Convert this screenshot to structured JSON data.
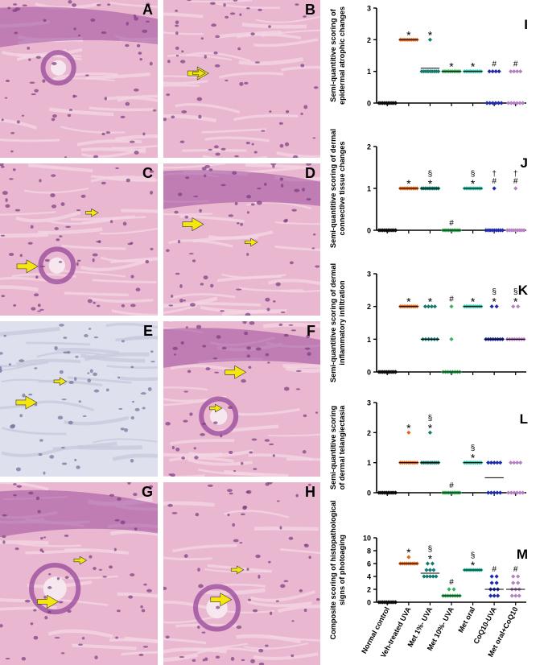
{
  "micrographs": [
    {
      "label": "A"
    },
    {
      "label": "B"
    },
    {
      "label": "C"
    },
    {
      "label": "D"
    },
    {
      "label": "E"
    },
    {
      "label": "F"
    },
    {
      "label": "G"
    },
    {
      "label": "H"
    }
  ],
  "colors": {
    "arrow": "#f5e60f",
    "he_pink": "#e9b7cf",
    "he_purple": "#9c4f9e",
    "series": [
      "#111111",
      "#e2671b",
      "#137a6d",
      "#35b15a",
      "#2fc0a5",
      "#1e2aa8",
      "#b57fc4"
    ]
  },
  "chart_data": [
    {
      "type": "scatter",
      "panel_label": "I",
      "ylabel": [
        "Semi-quantitive scoring of",
        "epidermal atrophic changes"
      ],
      "ylim": [
        0,
        3
      ],
      "yticks": [
        "0",
        "1",
        "2",
        "3"
      ],
      "categories": [
        "Normal control",
        "Veh-treated UVA",
        "Met 1%- UVA",
        "Met 10%- UVA",
        "Met oral",
        "CoQ10-UVA",
        "Met oral+CoQ10"
      ],
      "points": [
        [
          0,
          0,
          0,
          0,
          0,
          0,
          0,
          0,
          0,
          0
        ],
        [
          2,
          2,
          2,
          2,
          2,
          2,
          2,
          2,
          2,
          2
        ],
        [
          2,
          1,
          1,
          1,
          1,
          1,
          1,
          1,
          1,
          1
        ],
        [
          1,
          1,
          1,
          1,
          1,
          1,
          1,
          1,
          1,
          1
        ],
        [
          1,
          1,
          1,
          1,
          1,
          1,
          1,
          1,
          1,
          1
        ],
        [
          1,
          1,
          1,
          1,
          0,
          0,
          0,
          0,
          0,
          0
        ],
        [
          1,
          1,
          1,
          1,
          0,
          0,
          0,
          0,
          0,
          0
        ]
      ],
      "means": [
        0,
        2,
        1.1,
        1,
        1,
        null,
        null
      ],
      "annotations": [
        "",
        "*",
        "*",
        "*",
        "*",
        "#",
        "#"
      ]
    },
    {
      "type": "scatter",
      "panel_label": "J",
      "ylabel": [
        "Semi-quantitive scoring of dermal",
        "connective tissue changes"
      ],
      "ylim": [
        0,
        2
      ],
      "yticks": [
        "0",
        "1",
        "2"
      ],
      "categories": [
        "Normal control",
        "Veh-treated UVA",
        "Met 1%- UVA",
        "Met 10%- UVA",
        "Met oral",
        "CoQ10-UVA",
        "Met oral+CoQ10"
      ],
      "points": [
        [
          0,
          0,
          0,
          0,
          0,
          0,
          0,
          0,
          0,
          0
        ],
        [
          1,
          1,
          1,
          1,
          1,
          1,
          1,
          1,
          1,
          1
        ],
        [
          1,
          1,
          1,
          1,
          1,
          1,
          1,
          1,
          1,
          1
        ],
        [
          0,
          0,
          0,
          0,
          0,
          0,
          0,
          0,
          0,
          0
        ],
        [
          1,
          1,
          1,
          1,
          1,
          1,
          1,
          1,
          1,
          1
        ],
        [
          1,
          0,
          0,
          0,
          0,
          0,
          0,
          0,
          0,
          0
        ],
        [
          1,
          0,
          0,
          0,
          0,
          0,
          0,
          0,
          0,
          0
        ]
      ],
      "means": [
        0,
        1,
        1,
        0,
        1,
        null,
        null
      ],
      "annotations": [
        "",
        "*",
        "§\n*",
        "#",
        "§\n*",
        "†\n#",
        "†\n#"
      ]
    },
    {
      "type": "scatter",
      "panel_label": "K",
      "ylabel": [
        "Semi-quantitive scoring of dermal",
        "inflammatory infiltration"
      ],
      "ylim": [
        0,
        3
      ],
      "yticks": [
        "0",
        "1",
        "2",
        "3"
      ],
      "categories": [
        "Normal control",
        "Veh-treated UVA",
        "Met 1%- UVA",
        "Met 10%- UVA",
        "Met oral",
        "CoQ10-UVA",
        "Met oral+CoQ10"
      ],
      "points": [
        [
          0,
          0,
          0,
          0,
          0,
          0,
          0,
          0,
          0,
          0
        ],
        [
          2,
          2,
          2,
          2,
          2,
          2,
          2,
          2,
          2,
          2
        ],
        [
          2,
          2,
          2,
          2,
          1,
          1,
          1,
          1,
          1,
          1
        ],
        [
          2,
          1,
          0,
          0,
          0,
          0,
          0,
          0,
          0,
          0
        ],
        [
          2,
          2,
          2,
          2,
          2,
          2,
          2,
          2,
          2,
          2
        ],
        [
          2,
          2,
          1,
          1,
          1,
          1,
          1,
          1,
          1,
          1
        ],
        [
          2,
          2,
          1,
          1,
          1,
          1,
          1,
          1,
          1,
          1
        ]
      ],
      "means": [
        0,
        2,
        1,
        0,
        2,
        1,
        1
      ],
      "annotations": [
        "",
        "*",
        "*",
        "#",
        "*",
        "§\n*",
        "§\n*"
      ]
    },
    {
      "type": "scatter",
      "panel_label": "L",
      "ylabel": [
        "Semi-quantitive scoring",
        "of dermal telangiectasia"
      ],
      "ylim": [
        0,
        3
      ],
      "yticks": [
        "0",
        "1",
        "2",
        "3"
      ],
      "categories": [
        "Normal control",
        "Veh-treated UVA",
        "Met 1%- UVA",
        "Met 10%- UVA",
        "Met oral",
        "CoQ10-UVA",
        "Met oral+CoQ10"
      ],
      "points": [
        [
          0,
          0,
          0,
          0,
          0,
          0,
          0,
          0,
          0,
          0
        ],
        [
          2,
          1,
          1,
          1,
          1,
          1,
          1,
          1,
          1,
          1
        ],
        [
          2,
          1,
          1,
          1,
          1,
          1,
          1,
          1,
          1,
          1
        ],
        [
          0,
          0,
          0,
          0,
          0,
          0,
          0,
          0,
          0,
          0
        ],
        [
          1,
          1,
          1,
          1,
          1,
          1,
          1,
          1,
          1,
          1
        ],
        [
          1,
          1,
          1,
          1,
          1,
          0,
          0,
          0,
          0,
          0
        ],
        [
          1,
          1,
          1,
          1,
          0,
          0,
          0,
          0,
          0,
          0
        ]
      ],
      "means": [
        0,
        1,
        1,
        0,
        1,
        0.5,
        null
      ],
      "annotations": [
        "",
        "*",
        "§\n*",
        "#",
        "§\n*",
        "",
        ""
      ]
    },
    {
      "type": "scatter",
      "panel_label": "M",
      "ylabel": [
        "Composite scoring of histopathological",
        "signs of photoaging"
      ],
      "ylim": [
        0,
        10
      ],
      "yticks": [
        "0",
        "2",
        "4",
        "6",
        "8",
        "10"
      ],
      "categories": [
        "Normal control",
        "Veh-treated UVA",
        "Met 1%- UVA",
        "Met 10%- UVA",
        "Met oral",
        "CoQ10-UVA",
        "Met oral+CoQ10"
      ],
      "points": [
        [
          0,
          0,
          0,
          0,
          0,
          0,
          0,
          0,
          0,
          0
        ],
        [
          7,
          6,
          6,
          6,
          6,
          6,
          6,
          6,
          6,
          6
        ],
        [
          6,
          6,
          5,
          5,
          5,
          4,
          4,
          4,
          4,
          4
        ],
        [
          2,
          2,
          1,
          1,
          1,
          1,
          1,
          1,
          1,
          1
        ],
        [
          5,
          5,
          5,
          5,
          5,
          5,
          5,
          5,
          5,
          5
        ],
        [
          4,
          4,
          3,
          3,
          2,
          2,
          2,
          1,
          1,
          1
        ],
        [
          4,
          4,
          3,
          3,
          2,
          2,
          2,
          1,
          1,
          1
        ]
      ],
      "means": [
        0,
        6,
        4.5,
        1,
        5,
        2,
        2
      ],
      "annotations": [
        "",
        "*",
        "§\n*",
        "#",
        "§\n*",
        "#",
        "#"
      ]
    }
  ]
}
